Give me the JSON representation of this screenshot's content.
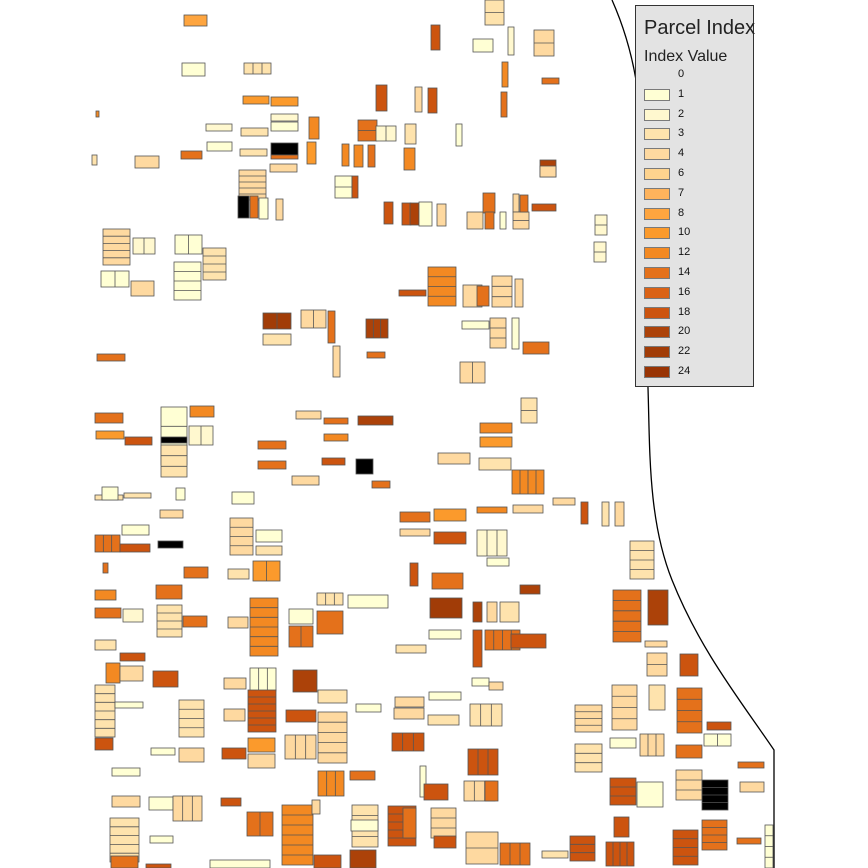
{
  "legend": {
    "title": "Parcel Index",
    "subtitle": "Index Value",
    "items": [
      {
        "label": "0",
        "color": "#e3e3e3"
      },
      {
        "label": "1",
        "color": "#ffffd4"
      },
      {
        "label": "2",
        "color": "#fff8cf"
      },
      {
        "label": "3",
        "color": "#fee3ad"
      },
      {
        "label": "4",
        "color": "#fed9a0"
      },
      {
        "label": "6",
        "color": "#fed38e"
      },
      {
        "label": "7",
        "color": "#feb35c"
      },
      {
        "label": "8",
        "color": "#fea53f"
      },
      {
        "label": "10",
        "color": "#fb9a2c"
      },
      {
        "label": "12",
        "color": "#f38922"
      },
      {
        "label": "14",
        "color": "#e4711b"
      },
      {
        "label": "16",
        "color": "#da6215"
      },
      {
        "label": "18",
        "color": "#cc540f"
      },
      {
        "label": "20",
        "color": "#ac4209"
      },
      {
        "label": "22",
        "color": "#a13c07"
      },
      {
        "label": "24",
        "color": "#993404"
      }
    ]
  }
}
